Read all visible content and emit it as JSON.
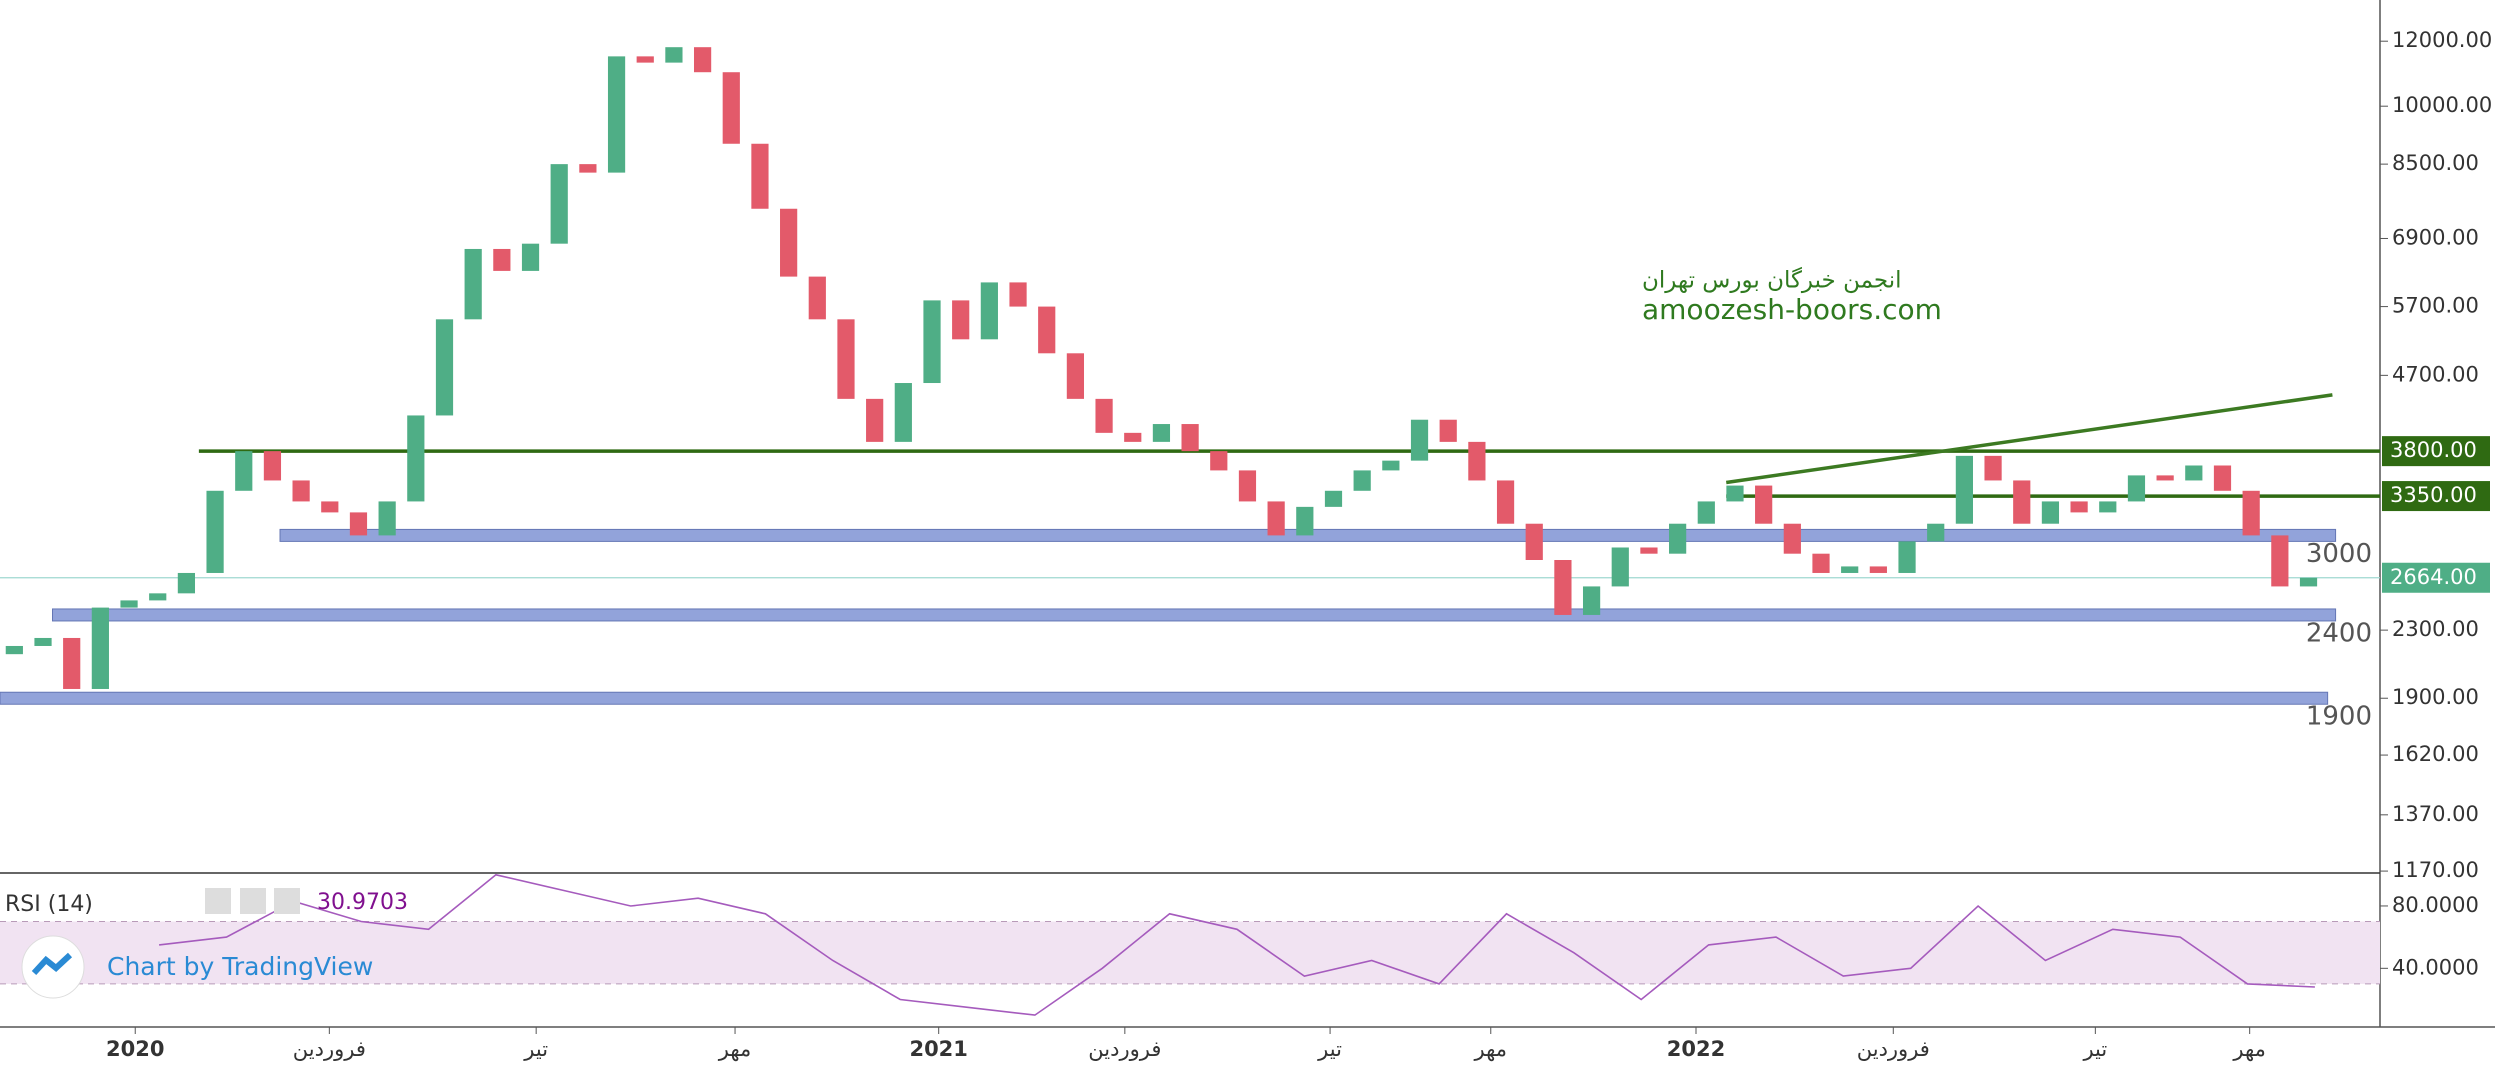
{
  "chart_data": {
    "type": "candlestick",
    "log_scale": true,
    "up_color": "#4fae86",
    "down_color": "#e35a6a",
    "open": [
      2150,
      2200,
      2250,
      1950,
      2450,
      2500,
      2550,
      2700,
      3400,
      3800,
      3500,
      3300,
      3200,
      3000,
      3300,
      4200,
      5500,
      6700,
      6300,
      6800,
      8500,
      8300,
      11500,
      11300,
      11800,
      11000,
      9000,
      7500,
      6200,
      5500,
      4400,
      3900,
      4600,
      5800,
      5200,
      6100,
      5700,
      5000,
      4400,
      4000,
      3900,
      4100,
      3800,
      3600,
      3300,
      3000,
      3250,
      3400,
      3600,
      3700,
      4150,
      3900,
      3500,
      3100,
      2800,
      2400,
      2600,
      2900,
      2850,
      3100,
      3300,
      3450,
      3100,
      2850,
      2700,
      2750,
      2700,
      2950,
      3100,
      3750,
      3500,
      3100,
      3300,
      3200,
      3300,
      3550,
      3500,
      3650,
      3400,
      3000,
      2600
    ],
    "close": [
      2200,
      2250,
      1950,
      2450,
      2500,
      2550,
      2700,
      3400,
      3800,
      3500,
      3300,
      3200,
      3000,
      3300,
      4200,
      5500,
      6700,
      6300,
      6800,
      8500,
      8300,
      11500,
      11300,
      11800,
      11000,
      9000,
      7500,
      6200,
      5500,
      4400,
      3900,
      4600,
      5800,
      5200,
      6100,
      5700,
      5000,
      4400,
      4000,
      3900,
      4100,
      3800,
      3600,
      3300,
      3000,
      3250,
      3400,
      3600,
      3700,
      4150,
      3900,
      3500,
      3100,
      2800,
      2400,
      2600,
      2900,
      2850,
      3100,
      3300,
      3450,
      3100,
      2850,
      2700,
      2750,
      2700,
      2950,
      3100,
      3750,
      3500,
      3100,
      3300,
      3200,
      3300,
      3550,
      3500,
      3650,
      3400,
      3000,
      2600,
      2664
    ],
    "ylim": [
      1167,
      13470
    ],
    "yticks": [
      {
        "value": 12000,
        "label": "12000.00"
      },
      {
        "value": 10000,
        "label": "10000.00"
      },
      {
        "value": 8500,
        "label": "8500.00"
      },
      {
        "value": 6900,
        "label": "6900.00"
      },
      {
        "value": 5700,
        "label": "5700.00"
      },
      {
        "value": 4700,
        "label": "4700.00"
      },
      {
        "value": 2300,
        "label": "2300.00"
      },
      {
        "value": 1900,
        "label": "1900.00"
      },
      {
        "value": 1620,
        "label": "1620.00"
      },
      {
        "value": 1370,
        "label": "1370.00"
      },
      {
        "value": 1170,
        "label": "1170.00"
      }
    ],
    "levels": [
      {
        "value": 3800,
        "label": "3800.00",
        "color": "#2f6a12"
      },
      {
        "value": 3350,
        "label": "3350.00",
        "color": "#2f6a12"
      }
    ],
    "last_price": {
      "value": 2664,
      "label": "2664.00",
      "color": "#4fae86"
    },
    "zones": [
      3000,
      2400,
      1900
    ],
    "zone_color": "#7f93d4",
    "trend_line": [
      3480,
      4450
    ],
    "categories": [
      "2020",
      "فروردین",
      "تیر",
      "مهر",
      "2021",
      "فروردین",
      "تیر",
      "مهر",
      "2022",
      "فروردین",
      "تیر",
      "مهر"
    ],
    "watermark": [
      "انجمن خبرگان بورس تهران",
      "amoozesh-boors.com"
    ],
    "rsi": {
      "name": "RSI (14)",
      "value": 30.9703,
      "color": "#a55bbd",
      "values": [
        55,
        60,
        83,
        70,
        65,
        100,
        90,
        80,
        85,
        75,
        45,
        20,
        15,
        10,
        40,
        75,
        65,
        35,
        45,
        30,
        75,
        50,
        20,
        55,
        60,
        35,
        40,
        80,
        45,
        65,
        60,
        30,
        28
      ],
      "ylim": [
        3,
        100.5
      ],
      "yticks": [
        {
          "value": 80,
          "label": "80.0000"
        },
        {
          "value": 40,
          "label": "40.0000"
        }
      ],
      "band": [
        30,
        70
      ]
    },
    "credit": "Chart by TradingView"
  }
}
